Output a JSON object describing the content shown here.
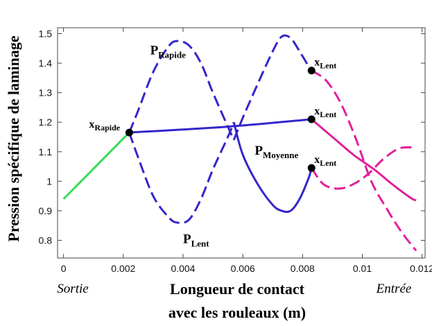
{
  "chart_data": {
    "type": "line",
    "title": "",
    "ylabel": "Pression spécifique de laminage",
    "xlabel_line1": "Longueur de contact",
    "xlabel_line2": "avec les rouleaux (m)",
    "left_label": "Sortie",
    "right_label": "Entrée",
    "xlim": [
      -0.0002,
      0.0121
    ],
    "ylim": [
      0.74,
      1.52
    ],
    "x_ticks": [
      0,
      0.002,
      0.004,
      0.006,
      0.008,
      0.01,
      0.012
    ],
    "x_tick_labels": [
      "0",
      "0.002",
      "0.004",
      "0.006",
      "0.008",
      "0.01",
      "0.012"
    ],
    "y_ticks": [
      0.8,
      0.9,
      1.0,
      1.1,
      1.2,
      1.3,
      1.4,
      1.5
    ],
    "y_tick_labels": [
      "0.8",
      "0.9",
      "1",
      "1.1",
      "1.2",
      "1.3",
      "1.4",
      "1.5"
    ],
    "colors": {
      "green": "#33dd55",
      "blue": "#3326cc",
      "magenta": "#e0209a"
    },
    "series": [
      {
        "style": "solid",
        "color": "green",
        "x": [
          0,
          0.0022
        ],
        "y": [
          0.94,
          1.165
        ]
      },
      {
        "style": "solid",
        "color": "blue",
        "x": [
          0.0022,
          0.0055,
          0.0083
        ],
        "y": [
          1.165,
          1.185,
          1.21
        ]
      },
      {
        "style": "dashed",
        "color": "blue",
        "x": [
          0.0022,
          0.0025,
          0.003,
          0.0035,
          0.0038,
          0.0042,
          0.0046,
          0.005,
          0.0055,
          0.0057
        ],
        "y": [
          1.165,
          1.24,
          1.37,
          1.455,
          1.475,
          1.46,
          1.4,
          1.3,
          1.185,
          1.14
        ]
      },
      {
        "style": "dashed",
        "color": "blue",
        "x": [
          0.0057,
          0.006,
          0.0065,
          0.007,
          0.0073,
          0.0076,
          0.0079,
          0.0082,
          0.0083
        ],
        "y": [
          1.14,
          1.215,
          1.33,
          1.44,
          1.49,
          1.485,
          1.44,
          1.39,
          1.375
        ]
      },
      {
        "style": "dashed",
        "color": "blue",
        "x": [
          0.0022,
          0.0025,
          0.003,
          0.0035,
          0.0038,
          0.0042,
          0.0046,
          0.005,
          0.0055,
          0.0057
        ],
        "y": [
          1.165,
          1.08,
          0.95,
          0.88,
          0.86,
          0.87,
          0.94,
          1.04,
          1.15,
          1.2
        ]
      },
      {
        "style": "solid",
        "color": "blue",
        "x": [
          0.0057,
          0.006,
          0.0065,
          0.007,
          0.0073,
          0.0076,
          0.0079,
          0.0082,
          0.0083
        ],
        "y": [
          1.2,
          1.09,
          0.99,
          0.92,
          0.9,
          0.9,
          0.94,
          1.01,
          1.045
        ]
      },
      {
        "style": "dashed",
        "color": "magenta",
        "x": [
          0.0083,
          0.0088,
          0.0093,
          0.0098,
          0.0103,
          0.0108,
          0.0113,
          0.0118
        ],
        "y": [
          1.375,
          1.34,
          1.26,
          1.14,
          1.0,
          0.91,
          0.83,
          0.765
        ]
      },
      {
        "style": "solid",
        "color": "magenta",
        "x": [
          0.0083,
          0.009,
          0.0097,
          0.0104,
          0.011,
          0.0116,
          0.0118
        ],
        "y": [
          1.21,
          1.15,
          1.09,
          1.04,
          0.99,
          0.945,
          0.935
        ]
      },
      {
        "style": "dashed",
        "color": "magenta",
        "x": [
          0.0083,
          0.0087,
          0.0092,
          0.0097,
          0.0102,
          0.0107,
          0.0112,
          0.0116,
          0.0118
        ],
        "y": [
          1.045,
          0.99,
          0.975,
          0.99,
          1.025,
          1.075,
          1.11,
          1.115,
          1.11
        ]
      }
    ],
    "points": [
      {
        "x": 0.0022,
        "y": 1.165,
        "label": "x",
        "sub": "Rapide",
        "anchor": "left"
      },
      {
        "x": 0.0083,
        "y": 1.375,
        "label": "x",
        "sub": "Lent",
        "anchor": "right"
      },
      {
        "x": 0.0083,
        "y": 1.21,
        "label": "x",
        "sub": "Lent",
        "anchor": "right"
      },
      {
        "x": 0.0083,
        "y": 1.045,
        "label": "x",
        "sub": "Lent",
        "anchor": "right"
      }
    ],
    "annotations": [
      {
        "x": 0.0029,
        "y": 1.43,
        "label": "P",
        "sub": "Rapide"
      },
      {
        "x": 0.0064,
        "y": 1.09,
        "label": "P",
        "sub": "Moyenne"
      },
      {
        "x": 0.004,
        "y": 0.79,
        "label": "P",
        "sub": "Lent"
      }
    ]
  }
}
